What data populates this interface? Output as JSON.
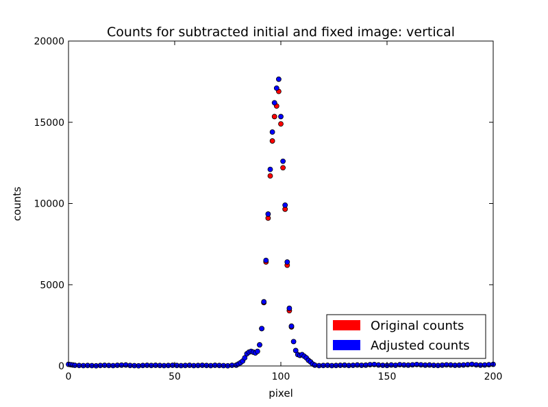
{
  "chart_data": {
    "type": "scatter",
    "title": "Counts for subtracted initial and fixed image: vertical",
    "xlabel": "pixel",
    "ylabel": "counts",
    "xlim": [
      0,
      200
    ],
    "ylim": [
      0,
      20000
    ],
    "xticks": [
      "0",
      "50",
      "100",
      "150",
      "200"
    ],
    "yticks": [
      "0",
      "5000",
      "10000",
      "15000",
      "20000"
    ],
    "grid": false,
    "legend_position": "bottom-right",
    "series": [
      {
        "name": "Original counts",
        "color": "#ff0000",
        "x": [
          90,
          91,
          92,
          93,
          94,
          95,
          96,
          97,
          98,
          99,
          100,
          101,
          102,
          103,
          104,
          105
        ],
        "y": [
          1300,
          2300,
          3900,
          6400,
          9100,
          11700,
          13850,
          15350,
          16000,
          16900,
          14900,
          12200,
          9650,
          6200,
          3400,
          2400
        ]
      },
      {
        "name": "Adjusted counts",
        "color": "#0000ff",
        "x": [
          0,
          1,
          2,
          3,
          5,
          7,
          9,
          11,
          13,
          15,
          17,
          19,
          21,
          23,
          25,
          27,
          29,
          31,
          33,
          35,
          37,
          39,
          41,
          43,
          45,
          47,
          49,
          51,
          53,
          55,
          57,
          59,
          61,
          63,
          65,
          67,
          69,
          71,
          73,
          75,
          77,
          79,
          80,
          81,
          82,
          83,
          84,
          85,
          86,
          87,
          88,
          89,
          90,
          91,
          92,
          93,
          94,
          95,
          96,
          97,
          98,
          99,
          100,
          101,
          102,
          103,
          104,
          105,
          106,
          107,
          108,
          109,
          110,
          111,
          112,
          113,
          114,
          115,
          116,
          118,
          120,
          122,
          124,
          126,
          128,
          130,
          132,
          134,
          136,
          138,
          140,
          142,
          144,
          146,
          148,
          150,
          152,
          154,
          156,
          158,
          160,
          162,
          164,
          166,
          168,
          170,
          172,
          174,
          176,
          178,
          180,
          182,
          184,
          186,
          188,
          190,
          192,
          194,
          196,
          198,
          200
        ],
        "y": [
          100,
          80,
          60,
          40,
          30,
          20,
          30,
          20,
          10,
          30,
          40,
          30,
          20,
          40,
          50,
          60,
          30,
          20,
          10,
          30,
          40,
          30,
          40,
          30,
          20,
          30,
          40,
          30,
          20,
          30,
          40,
          20,
          30,
          40,
          30,
          20,
          40,
          30,
          20,
          10,
          40,
          50,
          120,
          200,
          300,
          500,
          750,
          850,
          900,
          850,
          800,
          900,
          1300,
          2300,
          3950,
          6500,
          9350,
          12100,
          14400,
          16200,
          17100,
          17650,
          15350,
          12600,
          9900,
          6400,
          3550,
          2450,
          1500,
          950,
          700,
          650,
          700,
          600,
          500,
          350,
          250,
          120,
          50,
          20,
          30,
          40,
          20,
          30,
          40,
          50,
          30,
          40,
          60,
          40,
          50,
          80,
          90,
          60,
          40,
          30,
          60,
          40,
          80,
          60,
          50,
          70,
          90,
          70,
          50,
          60,
          40,
          30,
          50,
          70,
          60,
          40,
          50,
          60,
          80,
          100,
          70,
          50,
          60,
          80,
          100
        ]
      }
    ]
  }
}
